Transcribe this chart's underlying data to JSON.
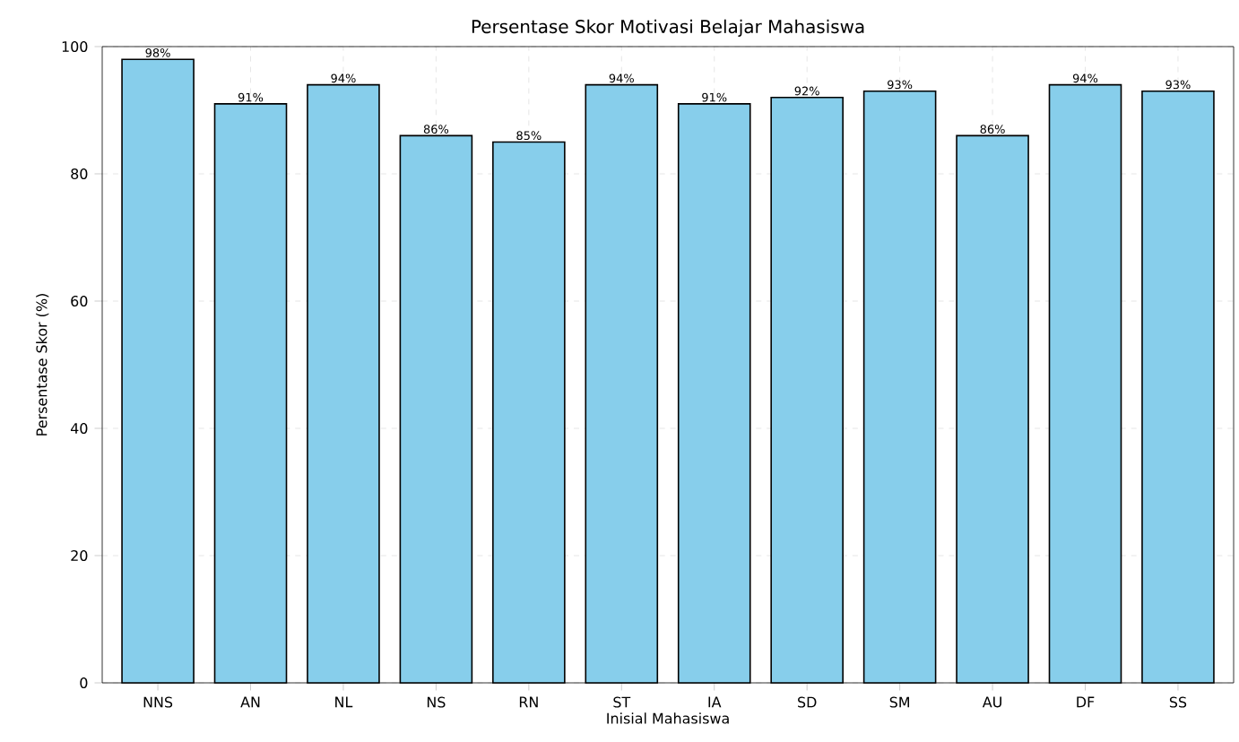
{
  "chart_data": {
    "type": "bar",
    "title": "Persentase Skor Motivasi Belajar Mahasiswa",
    "xlabel": "Inisial Mahasiswa",
    "ylabel": "Persentase Skor (%)",
    "categories": [
      "NNS",
      "AN",
      "NL",
      "NS",
      "RN",
      "ST",
      "IA",
      "SD",
      "SM",
      "AU",
      "DF",
      "SS"
    ],
    "values": [
      98,
      91,
      94,
      86,
      85,
      94,
      91,
      92,
      93,
      86,
      94,
      93
    ],
    "value_labels": [
      "98%",
      "91%",
      "94%",
      "86%",
      "85%",
      "94%",
      "91%",
      "92%",
      "93%",
      "86%",
      "94%",
      "93%"
    ],
    "color": "#87ceeb",
    "ylim": [
      0,
      100
    ],
    "yticks": [
      0,
      20,
      40,
      60,
      80,
      100
    ],
    "grid": true
  }
}
